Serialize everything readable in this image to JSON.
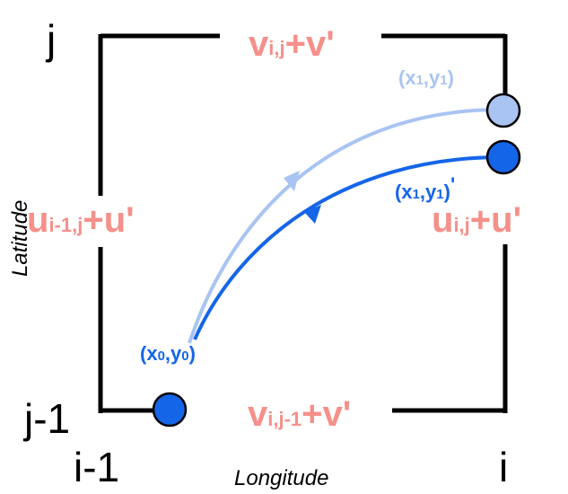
{
  "grid_labels": {
    "j": "j",
    "j_minus_1": "j-1",
    "i_minus_1": "i-1",
    "i": "i"
  },
  "axes": {
    "x": "Longitude",
    "y": "Latitude"
  },
  "velocity_labels": {
    "top": {
      "base": "v",
      "sub": "i,j",
      "pert": "+v'"
    },
    "bottom": {
      "base": "v",
      "sub": "i,j-1",
      "pert": "+v'"
    },
    "left": {
      "base": "u",
      "sub": "i-1,j",
      "pert": "+u'"
    },
    "right": {
      "base": "u",
      "sub": "i,j",
      "pert": "+u'"
    }
  },
  "points": {
    "start": {
      "x": "x",
      "xs": "0",
      "y": "y",
      "ys": "0"
    },
    "end_light": {
      "x": "x",
      "xs": "1",
      "y": "y",
      "ys": "1"
    },
    "end_dark": {
      "x": "x",
      "xs": "1",
      "y": "y",
      "ys": "1",
      "prime": "'"
    }
  },
  "colors": {
    "velocity": "#f5908a",
    "trajectory_dark": "#1565e8",
    "trajectory_light": "#a9c4f2",
    "grid_line": "#000000"
  }
}
